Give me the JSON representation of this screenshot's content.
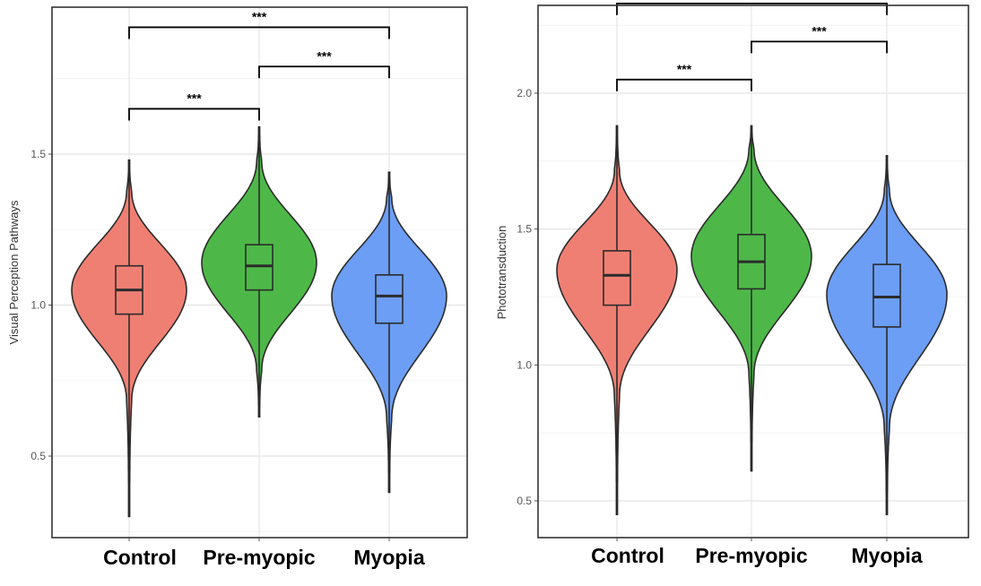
{
  "chart_data": [
    {
      "type": "violin",
      "ylabel": "Visual Perception Pathways",
      "ylim": [
        0.4,
        1.9
      ],
      "yticks": [
        0.5,
        1.0,
        1.5
      ],
      "grid": true,
      "categories": [
        "Control",
        "Pre-myopic",
        "Myopia"
      ],
      "colors": [
        "#F07F73",
        "#4DB848",
        "#6C9EF5"
      ],
      "series": [
        {
          "category": "Control",
          "min": 0.3,
          "q1": 0.97,
          "median": 1.05,
          "q3": 1.13,
          "max": 1.48,
          "violin_bottom": 0.68,
          "violin_top": 1.38,
          "peak": 1.05
        },
        {
          "category": "Pre-myopic",
          "min": 0.63,
          "q1": 1.05,
          "median": 1.13,
          "q3": 1.2,
          "max": 1.59,
          "violin_bottom": 0.78,
          "violin_top": 1.48,
          "peak": 1.14
        },
        {
          "category": "Myopia",
          "min": 0.38,
          "q1": 0.94,
          "median": 1.03,
          "q3": 1.1,
          "max": 1.44,
          "violin_bottom": 0.62,
          "violin_top": 1.36,
          "peak": 1.03
        }
      ],
      "significance": [
        {
          "from": "Control",
          "to": "Pre-myopic",
          "label": "***",
          "y": 1.65
        },
        {
          "from": "Pre-myopic",
          "to": "Myopia",
          "label": "***",
          "y": 1.79
        },
        {
          "from": "Control",
          "to": "Myopia",
          "label": "***",
          "y": 1.92
        }
      ]
    },
    {
      "type": "violin",
      "ylabel": "Phototransduction",
      "ylim": [
        0.36,
        2.33
      ],
      "yticks": [
        0.5,
        1.0,
        1.5,
        2.0
      ],
      "grid": true,
      "categories": [
        "Control",
        "Pre-myopic",
        "Myopia"
      ],
      "colors": [
        "#F07F73",
        "#4DB848",
        "#6C9EF5"
      ],
      "series": [
        {
          "category": "Control",
          "min": 0.45,
          "q1": 1.22,
          "median": 1.33,
          "q3": 1.42,
          "max": 1.88,
          "violin_bottom": 0.88,
          "violin_top": 1.72,
          "peak": 1.35
        },
        {
          "category": "Pre-myopic",
          "min": 0.61,
          "q1": 1.28,
          "median": 1.38,
          "q3": 1.48,
          "max": 1.88,
          "violin_bottom": 0.96,
          "violin_top": 1.8,
          "peak": 1.4
        },
        {
          "category": "Myopia",
          "min": 0.45,
          "q1": 1.14,
          "median": 1.25,
          "q3": 1.37,
          "max": 1.77,
          "violin_bottom": 0.76,
          "violin_top": 1.65,
          "peak": 1.26
        }
      ],
      "significance": [
        {
          "from": "Control",
          "to": "Pre-myopic",
          "label": "***",
          "y": 2.05
        },
        {
          "from": "Pre-myopic",
          "to": "Myopia",
          "label": "***",
          "y": 2.19
        },
        {
          "from": "Control",
          "to": "Myopia",
          "label": "***",
          "y": 2.33
        }
      ]
    }
  ]
}
